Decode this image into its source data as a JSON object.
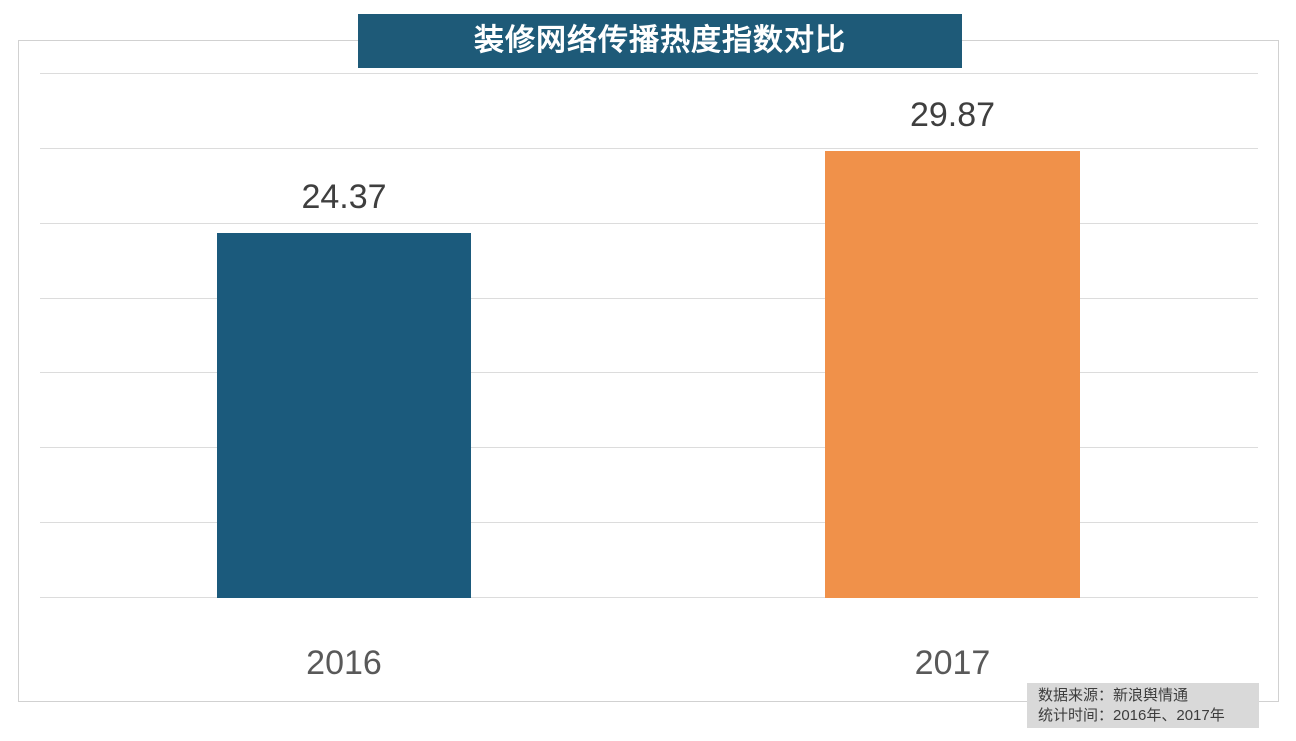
{
  "title": "装修网络传播热度指数对比",
  "source_note": {
    "line1": "数据来源：新浪舆情通",
    "line2": "统计时间：2016年、2017年"
  },
  "colors": {
    "title_bg": "#1E5A78",
    "title_text": "#FFFFFF",
    "bar_2016": "#1B5A7C",
    "bar_2017": "#F0914A",
    "gridline": "#DCDCDC",
    "frame_border": "#D1D1D1",
    "source_bg": "#D9D9D9",
    "value_label_text": "#3F3F3F",
    "axis_label_text": "#595959"
  },
  "chart_data": {
    "type": "bar",
    "title": "装修网络传播热度指数对比",
    "categories": [
      "2016",
      "2017"
    ],
    "values": [
      24.37,
      29.87
    ],
    "value_labels": [
      "24.37",
      "29.87"
    ],
    "bar_colors": [
      "#1B5A7C",
      "#F0914A"
    ],
    "xlabel": "",
    "ylabel": "",
    "ylim": [
      0,
      35
    ],
    "ytick_step": 5,
    "yaxis_tick_labels_visible": false,
    "grid": "horizontal",
    "legend": "none",
    "source": "数据来源：新浪舆情通",
    "period": "统计时间：2016年、2017年"
  }
}
